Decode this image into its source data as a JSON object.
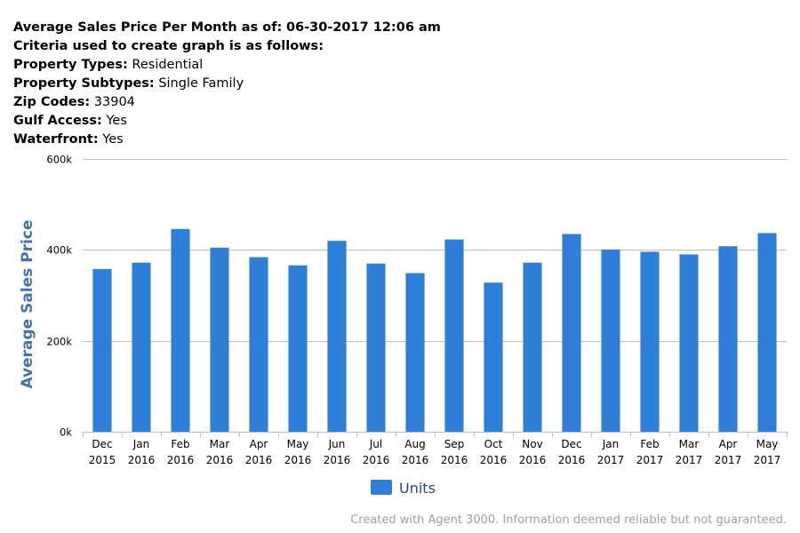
{
  "header": {
    "title_label": "Average Sales Price Per Month as of:",
    "title_value": "06-30-2017 12:06 am",
    "criteria_label": "Criteria used to create graph is as follows:",
    "criteria": [
      {
        "label": "Property Types:",
        "value": "Residential"
      },
      {
        "label": "Property Subtypes:",
        "value": "Single Family"
      },
      {
        "label": "Zip Codes:",
        "value": "33904"
      },
      {
        "label": "Gulf Access:",
        "value": "Yes"
      },
      {
        "label": "Waterfront:",
        "value": "Yes"
      }
    ]
  },
  "footer": {
    "text": "Created with Agent 3000. Information deemed reliable but not guaranteed."
  },
  "colors": {
    "bar": "#2F7ED8",
    "grid": "#C0C0C0",
    "axis_title": "#4572A7",
    "text": "#000000",
    "legend_text": "#274B6D"
  },
  "chart_data": {
    "type": "bar",
    "ylabel": "Average Sales Price",
    "xlabel": "",
    "ylim": [
      0,
      600000
    ],
    "yticks": [
      {
        "value": 0,
        "label": "0k"
      },
      {
        "value": 200000,
        "label": "200k"
      },
      {
        "value": 400000,
        "label": "400k"
      },
      {
        "value": 600000,
        "label": "600k"
      }
    ],
    "grid": true,
    "legend_position": "bottom-center",
    "categories": [
      [
        "Dec",
        "2015"
      ],
      [
        "Jan",
        "2016"
      ],
      [
        "Feb",
        "2016"
      ],
      [
        "Mar",
        "2016"
      ],
      [
        "Apr",
        "2016"
      ],
      [
        "May",
        "2016"
      ],
      [
        "Jun",
        "2016"
      ],
      [
        "Jul",
        "2016"
      ],
      [
        "Aug",
        "2016"
      ],
      [
        "Sep",
        "2016"
      ],
      [
        "Oct",
        "2016"
      ],
      [
        "Nov",
        "2016"
      ],
      [
        "Dec",
        "2016"
      ],
      [
        "Jan",
        "2017"
      ],
      [
        "Feb",
        "2017"
      ],
      [
        "Mar",
        "2017"
      ],
      [
        "Apr",
        "2017"
      ],
      [
        "May",
        "2017"
      ]
    ],
    "series": [
      {
        "name": "Units",
        "values": [
          358000,
          372000,
          446000,
          405000,
          384000,
          366000,
          420000,
          370000,
          349000,
          423000,
          328000,
          372000,
          435000,
          401000,
          396000,
          390000,
          408000,
          437000
        ]
      }
    ]
  }
}
